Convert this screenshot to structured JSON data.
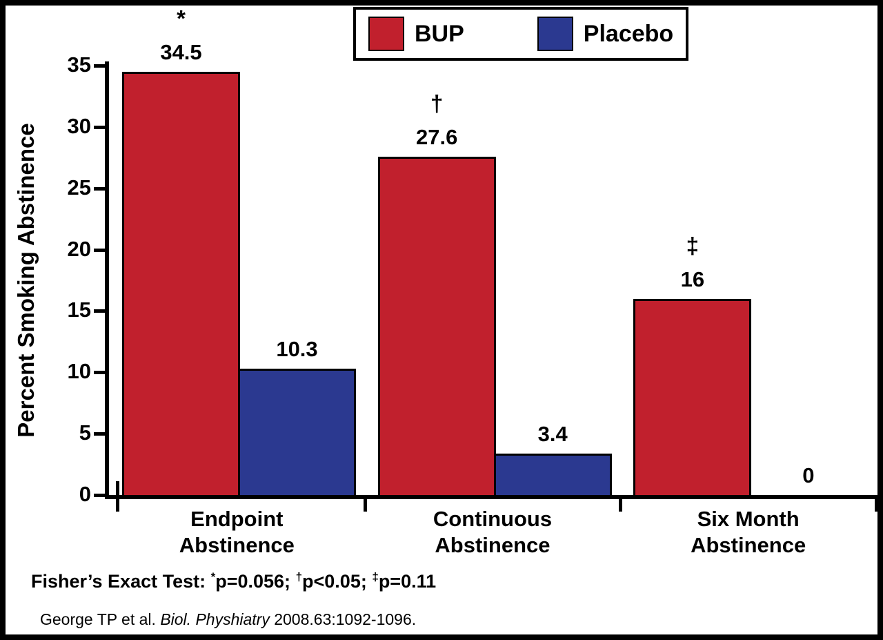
{
  "legend": {
    "items": [
      {
        "label": "BUP",
        "color": "#C1202D"
      },
      {
        "label": "Placebo",
        "color": "#2B3990"
      }
    ]
  },
  "chart_data": {
    "type": "bar",
    "title": "",
    "xlabel": "",
    "ylabel": "Percent Smoking Abstinence",
    "ylim": [
      0,
      35
    ],
    "yticks": [
      0,
      5,
      10,
      15,
      20,
      25,
      30,
      35
    ],
    "grid": false,
    "legend_position": "top",
    "categories": [
      "Endpoint\nAbstinence",
      "Continuous\nAbstinence",
      "Six Month\nAbstinence"
    ],
    "series": [
      {
        "name": "BUP",
        "color": "#C1202D",
        "values": [
          34.5,
          27.6,
          16
        ],
        "value_labels": [
          "34.5",
          "27.6",
          "16"
        ],
        "annotations": [
          "*",
          "†",
          "‡"
        ]
      },
      {
        "name": "Placebo",
        "color": "#2B3990",
        "values": [
          10.3,
          3.4,
          0
        ],
        "value_labels": [
          "10.3",
          "3.4",
          "0"
        ],
        "annotations": [
          "",
          "",
          ""
        ]
      }
    ]
  },
  "footnote": {
    "prefix": "Fisher’s Exact Test: ",
    "segments": [
      {
        "sup": "*",
        "text": "p=0.056; "
      },
      {
        "sup": "†",
        "text": "p<0.05; "
      },
      {
        "sup": "‡",
        "text": "p=0.11"
      }
    ]
  },
  "citation": {
    "before": "George TP et al. ",
    "italic": "Biol. Physhiatry",
    "after": " 2008.63:1092-1096."
  }
}
